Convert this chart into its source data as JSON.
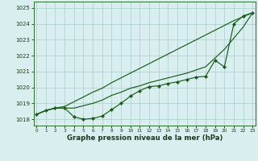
{
  "x": [
    0,
    1,
    2,
    3,
    4,
    5,
    6,
    7,
    8,
    9,
    10,
    11,
    12,
    13,
    14,
    15,
    16,
    17,
    18,
    19,
    20,
    21,
    22,
    23
  ],
  "line_markers": [
    1018.3,
    1018.55,
    1018.7,
    1018.7,
    1018.15,
    1018.0,
    1018.05,
    1018.2,
    1018.6,
    1019.0,
    1019.45,
    1019.8,
    1020.05,
    1020.1,
    1020.25,
    1020.35,
    1020.5,
    1020.65,
    1020.7,
    1021.7,
    1021.3,
    1024.0,
    1024.5,
    1024.7
  ],
  "line_upper": [
    1018.3,
    1018.55,
    1018.7,
    1018.8,
    1019.1,
    1019.4,
    1019.7,
    1019.95,
    1020.3,
    1020.6,
    1020.9,
    1021.2,
    1021.5,
    1021.8,
    1022.1,
    1022.4,
    1022.7,
    1023.0,
    1023.3,
    1023.6,
    1023.9,
    1024.2,
    1024.45,
    1024.7
  ],
  "line_mid": [
    1018.3,
    1018.55,
    1018.7,
    1018.7,
    1018.7,
    1018.85,
    1019.0,
    1019.2,
    1019.5,
    1019.7,
    1019.95,
    1020.1,
    1020.3,
    1020.45,
    1020.6,
    1020.75,
    1020.9,
    1021.1,
    1021.3,
    1021.85,
    1022.4,
    1023.1,
    1023.8,
    1024.7
  ],
  "background_color": "#d9eeee",
  "grid_color": "#aacccc",
  "line_color": "#1a5c1a",
  "ylim": [
    1017.6,
    1025.4
  ],
  "xlim": [
    -0.3,
    23.3
  ],
  "yticks": [
    1018,
    1019,
    1020,
    1021,
    1022,
    1023,
    1024,
    1025
  ],
  "xticks": [
    0,
    1,
    2,
    3,
    4,
    5,
    6,
    7,
    8,
    9,
    10,
    11,
    12,
    13,
    14,
    15,
    16,
    17,
    18,
    19,
    20,
    21,
    22,
    23
  ],
  "xlabel": "Graphe pression niveau de la mer (hPa)"
}
